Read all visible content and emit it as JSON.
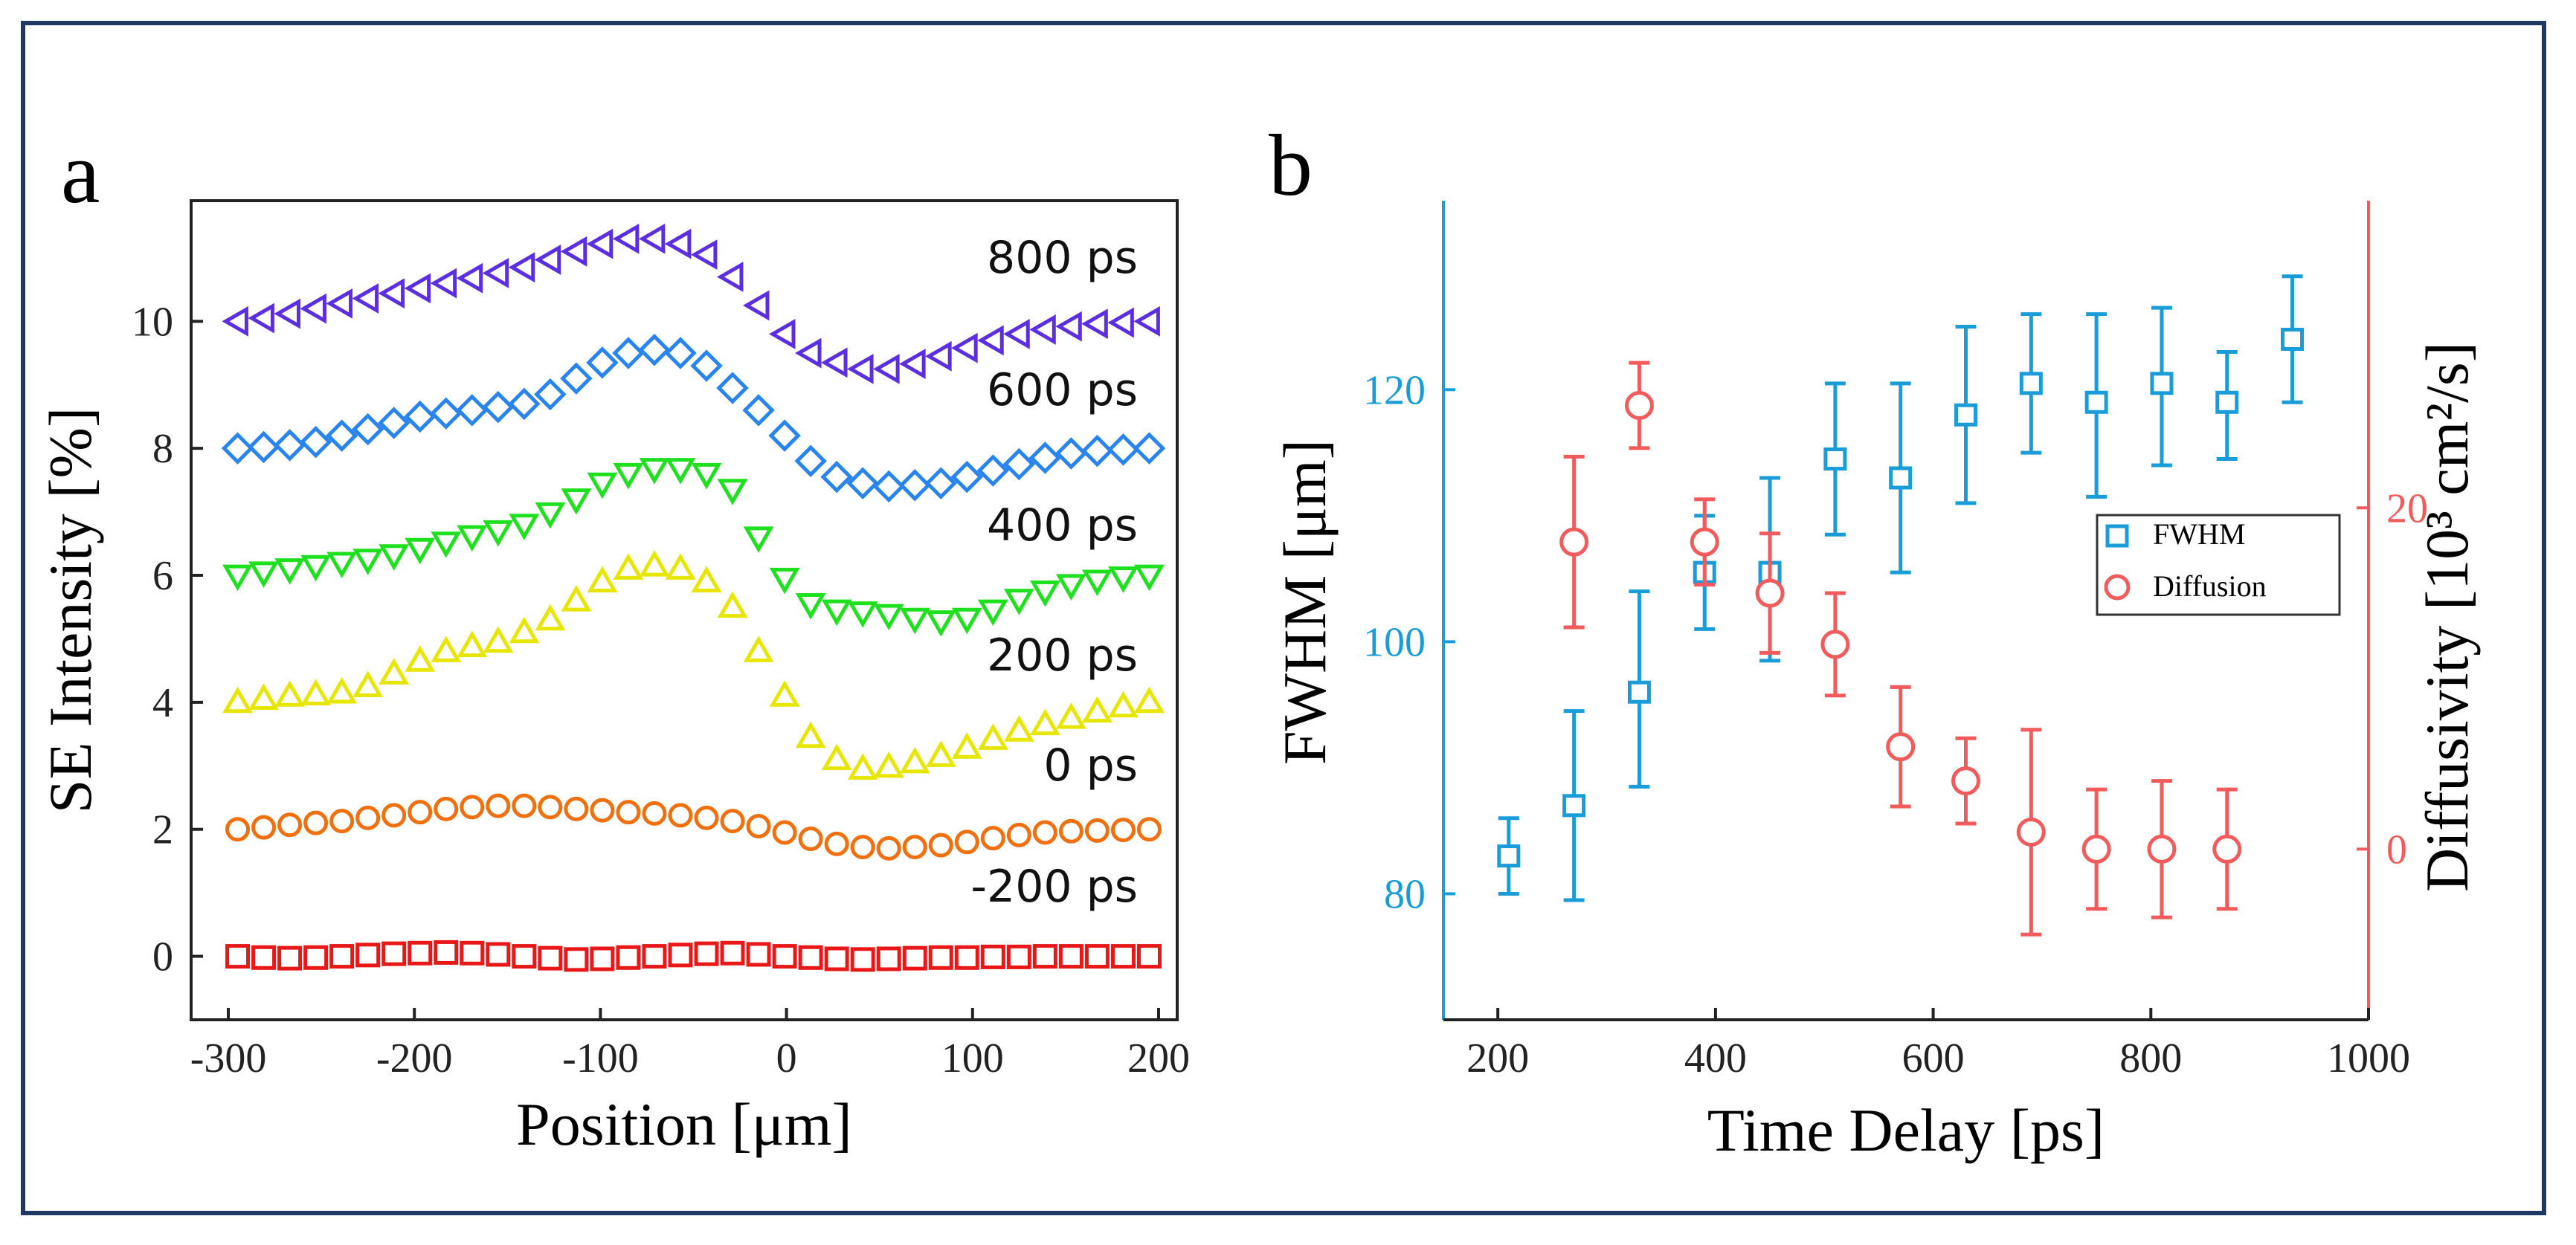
{
  "panel_labels": {
    "a": "a",
    "b": "b"
  },
  "colors": {
    "frame": "#1f3864",
    "fwhm": "#1a9cd8",
    "diffusion": "#f25b5b",
    "curve_800": "#5b2ee0",
    "curve_600": "#2a84ee",
    "curve_400": "#1fe01f",
    "curve_200": "#e6e600",
    "curve_0": "#f07010",
    "curve_neg200": "#e81818"
  },
  "chart_data": [
    {
      "id": "a",
      "type": "scatter",
      "title": "",
      "xlabel": "Position [μm]",
      "ylabel": "SE Intensity [%]",
      "xlim": [
        -320,
        210
      ],
      "ylim": [
        -1.0,
        11.9
      ],
      "xticks": [
        -300,
        -200,
        -100,
        0,
        100,
        200
      ],
      "yticks": [
        0,
        2,
        4,
        6,
        8,
        10
      ],
      "x": [
        -295,
        -281,
        -267,
        -253,
        -239,
        -225,
        -211,
        -197,
        -183,
        -169,
        -155,
        -141,
        -127,
        -113,
        -99,
        -85,
        -71,
        -57,
        -43,
        -29,
        -15,
        -1,
        13,
        27,
        41,
        55,
        69,
        83,
        97,
        111,
        125,
        139,
        153,
        167,
        181,
        195
      ],
      "series": [
        {
          "name": "-200 ps",
          "label": "-200 ps",
          "marker": "square",
          "color_key": "curve_neg200",
          "values": [
            0.0,
            -0.02,
            -0.03,
            -0.02,
            0.0,
            0.02,
            0.04,
            0.05,
            0.06,
            0.05,
            0.03,
            0.0,
            -0.03,
            -0.05,
            -0.04,
            -0.02,
            0.0,
            0.02,
            0.04,
            0.05,
            0.03,
            0.0,
            -0.02,
            -0.04,
            -0.05,
            -0.04,
            -0.03,
            -0.02,
            -0.02,
            -0.01,
            -0.01,
            0.0,
            0.0,
            0.0,
            0.0,
            0.0
          ]
        },
        {
          "name": "0 ps",
          "label": "0 ps",
          "marker": "circle",
          "color_key": "curve_0",
          "values": [
            2.0,
            2.03,
            2.07,
            2.1,
            2.13,
            2.18,
            2.22,
            2.27,
            2.32,
            2.35,
            2.37,
            2.37,
            2.35,
            2.32,
            2.3,
            2.27,
            2.25,
            2.22,
            2.18,
            2.13,
            2.05,
            1.95,
            1.85,
            1.77,
            1.72,
            1.7,
            1.72,
            1.75,
            1.8,
            1.86,
            1.91,
            1.95,
            1.97,
            1.98,
            1.99,
            2.0
          ]
        },
        {
          "name": "200 ps",
          "label": "200 ps",
          "marker": "triangle-up",
          "color_key": "curve_200",
          "values": [
            4.0,
            4.05,
            4.1,
            4.12,
            4.15,
            4.25,
            4.45,
            4.65,
            4.8,
            4.88,
            4.95,
            5.1,
            5.3,
            5.6,
            5.9,
            6.1,
            6.15,
            6.1,
            5.9,
            5.5,
            4.8,
            4.1,
            3.45,
            3.1,
            2.95,
            2.98,
            3.05,
            3.15,
            3.28,
            3.42,
            3.55,
            3.65,
            3.75,
            3.85,
            3.93,
            4.0
          ]
        },
        {
          "name": "400 ps",
          "label": "400 ps",
          "marker": "triangle-down",
          "color_key": "curve_400",
          "values": [
            6.0,
            6.05,
            6.1,
            6.15,
            6.2,
            6.25,
            6.32,
            6.42,
            6.52,
            6.62,
            6.7,
            6.8,
            6.98,
            7.2,
            7.45,
            7.6,
            7.68,
            7.68,
            7.6,
            7.35,
            6.6,
            5.95,
            5.55,
            5.45,
            5.42,
            5.38,
            5.32,
            5.28,
            5.32,
            5.45,
            5.62,
            5.75,
            5.85,
            5.92,
            5.97,
            6.0
          ]
        },
        {
          "name": "600 ps",
          "label": "600 ps",
          "marker": "diamond",
          "color_key": "curve_600",
          "values": [
            8.0,
            8.02,
            8.05,
            8.1,
            8.2,
            8.3,
            8.4,
            8.5,
            8.55,
            8.6,
            8.65,
            8.7,
            8.85,
            9.1,
            9.35,
            9.5,
            9.55,
            9.5,
            9.3,
            8.95,
            8.6,
            8.2,
            7.8,
            7.55,
            7.45,
            7.4,
            7.42,
            7.45,
            7.55,
            7.65,
            7.75,
            7.85,
            7.92,
            7.96,
            7.98,
            8.0
          ]
        },
        {
          "name": "800 ps",
          "label": "800 ps",
          "marker": "triangle-left",
          "color_key": "curve_800",
          "values": [
            10.0,
            10.05,
            10.12,
            10.2,
            10.28,
            10.36,
            10.44,
            10.52,
            10.6,
            10.68,
            10.76,
            10.85,
            10.97,
            11.1,
            11.22,
            11.3,
            11.3,
            11.22,
            11.05,
            10.7,
            10.25,
            9.8,
            9.5,
            9.35,
            9.25,
            9.25,
            9.33,
            9.45,
            9.58,
            9.7,
            9.8,
            9.87,
            9.92,
            9.96,
            9.98,
            10.0
          ]
        }
      ],
      "annotations": [
        "800 ps",
        "600 ps",
        "400 ps",
        "200 ps",
        "0 ps",
        "-200 ps"
      ]
    },
    {
      "id": "b",
      "type": "scatter",
      "title": "",
      "xlabel": "Time Delay [ps]",
      "ylabel": "FWHM [μm]",
      "y2label": "Diffusivity [10³ cm²/s]",
      "xlim": [
        150,
        1000
      ],
      "ylim": [
        70,
        135
      ],
      "y2lim": [
        -10,
        38
      ],
      "xticks": [
        200,
        400,
        600,
        800,
        1000
      ],
      "yticks": [
        80,
        100,
        120
      ],
      "y2ticks": [
        0,
        20
      ],
      "legend": {
        "position": "right",
        "entries": [
          "FWHM",
          "Diffusion"
        ]
      },
      "series": [
        {
          "name": "FWHM",
          "axis": "left",
          "marker": "square",
          "color_key": "fwhm",
          "x": [
            210,
            270,
            330,
            390,
            450,
            510,
            570,
            630,
            690,
            750,
            810,
            870,
            930
          ],
          "values": [
            83.0,
            87.0,
            96.0,
            105.5,
            105.5,
            114.5,
            113.0,
            118.0,
            120.5,
            119.0,
            120.5,
            119.0,
            124.0
          ],
          "error_low": [
            3.0,
            7.5,
            7.5,
            4.5,
            7.0,
            6.0,
            7.5,
            7.0,
            5.5,
            7.5,
            6.5,
            4.5,
            5.0
          ],
          "error_high": [
            3.0,
            7.5,
            8.0,
            4.5,
            7.5,
            6.0,
            7.5,
            7.0,
            5.5,
            7.0,
            6.0,
            4.0,
            5.0
          ]
        },
        {
          "name": "Diffusion",
          "axis": "right",
          "marker": "circle",
          "color_key": "diffusion",
          "x": [
            270,
            330,
            390,
            450,
            510,
            570,
            630,
            690,
            750,
            810,
            870
          ],
          "values": [
            18,
            26,
            18,
            15,
            12,
            6,
            4,
            1,
            0,
            0,
            0
          ],
          "error_low": [
            5,
            2.5,
            2.5,
            3.5,
            3,
            3.5,
            2.5,
            6,
            3.5,
            4,
            3.5
          ],
          "error_high": [
            5,
            2.5,
            2.5,
            3.5,
            3,
            3.5,
            2.5,
            6,
            3.5,
            4,
            3.5
          ]
        }
      ]
    }
  ]
}
